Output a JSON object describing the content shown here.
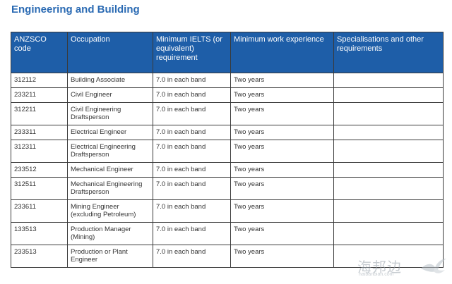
{
  "title": "Engineering and Building",
  "table": {
    "headers": [
      "ANZSCO code",
      "Occupation",
      "Minimum IELTS (or equivalent) requirement",
      "Minimum work experience",
      "Specialisations and other requirements"
    ],
    "rows": [
      {
        "code": "312112",
        "occupation": "Building Associate",
        "ielts": "7.0 in each band",
        "experience": "Two years",
        "specialisations": ""
      },
      {
        "code": "233211",
        "occupation": "Civil Engineer",
        "ielts": "7.0 in each band",
        "experience": "Two years",
        "specialisations": ""
      },
      {
        "code": "312211",
        "occupation": "Civil Engineering Draftsperson",
        "ielts": "7.0 in each band",
        "experience": "Two years",
        "specialisations": ""
      },
      {
        "code": "233311",
        "occupation": "Electrical Engineer",
        "ielts": "7.0 in each band",
        "experience": "Two years",
        "specialisations": ""
      },
      {
        "code": "312311",
        "occupation": "Electrical Engineering Draftsperson",
        "ielts": "7.0 in each band",
        "experience": "Two years",
        "specialisations": ""
      },
      {
        "code": "233512",
        "occupation": "Mechanical Engineer",
        "ielts": "7.0 in each band",
        "experience": "Two years",
        "specialisations": ""
      },
      {
        "code": "312511",
        "occupation": "Mechanical Engineering Draftsperson",
        "ielts": "7.0 in each band",
        "experience": "Two years",
        "specialisations": ""
      },
      {
        "code": "233611",
        "occupation": "Mining Engineer (excluding Petroleum)",
        "ielts": "7.0 in each band",
        "experience": "Two years",
        "specialisations": ""
      },
      {
        "code": "133513",
        "occupation": "Production Manager (Mining)",
        "ielts": "7.0 in each band",
        "experience": "Two years",
        "specialisations": ""
      },
      {
        "code": "233513",
        "occupation": "Production or Plant Engineer",
        "ielts": "7.0 in each band",
        "experience": "Two years",
        "specialisations": ""
      }
    ]
  },
  "watermark": {
    "text": "海邦边",
    "subtext": "haibanbian.com"
  }
}
